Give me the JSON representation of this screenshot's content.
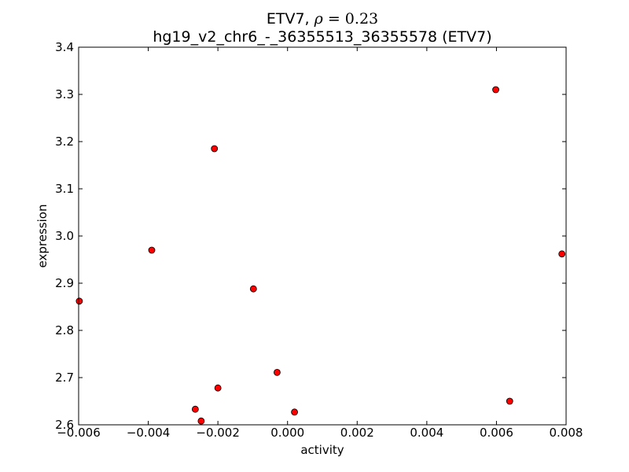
{
  "chart_data": {
    "type": "scatter",
    "title_prefix": "ETV7, ",
    "title_rho_symbol": "ρ",
    "title_rho_value": " = 0.23",
    "subtitle": "hg19_v2_chr6_-_36355513_36355578 (ETV7)",
    "xlabel": "activity",
    "ylabel": "expression",
    "xlim": [
      -0.006,
      0.008
    ],
    "ylim": [
      2.6,
      3.4
    ],
    "xticks": [
      -0.006,
      -0.004,
      -0.002,
      0.0,
      0.002,
      0.004,
      0.006,
      0.008
    ],
    "xtick_labels": [
      "−0.006",
      "−0.004",
      "−0.002",
      "0.000",
      "0.002",
      "0.004",
      "0.006",
      "0.008"
    ],
    "yticks": [
      2.6,
      2.7,
      2.8,
      2.9,
      3.0,
      3.1,
      3.2,
      3.3,
      3.4
    ],
    "ytick_labels": [
      "2.6",
      "2.7",
      "2.8",
      "2.9",
      "3.0",
      "3.1",
      "3.2",
      "3.3",
      "3.4"
    ],
    "grid": false,
    "marker_color": "#ff0000",
    "points": [
      {
        "x": -0.00598,
        "y": 2.862
      },
      {
        "x": -0.0039,
        "y": 2.97
      },
      {
        "x": -0.00265,
        "y": 2.633
      },
      {
        "x": -0.00248,
        "y": 2.608
      },
      {
        "x": -0.0021,
        "y": 3.185
      },
      {
        "x": -0.002,
        "y": 2.678
      },
      {
        "x": -0.00098,
        "y": 2.888
      },
      {
        "x": -0.0003,
        "y": 2.711
      },
      {
        "x": 0.0002,
        "y": 2.627
      },
      {
        "x": 0.00598,
        "y": 3.31
      },
      {
        "x": 0.00638,
        "y": 2.65
      },
      {
        "x": 0.00788,
        "y": 2.962
      }
    ]
  }
}
